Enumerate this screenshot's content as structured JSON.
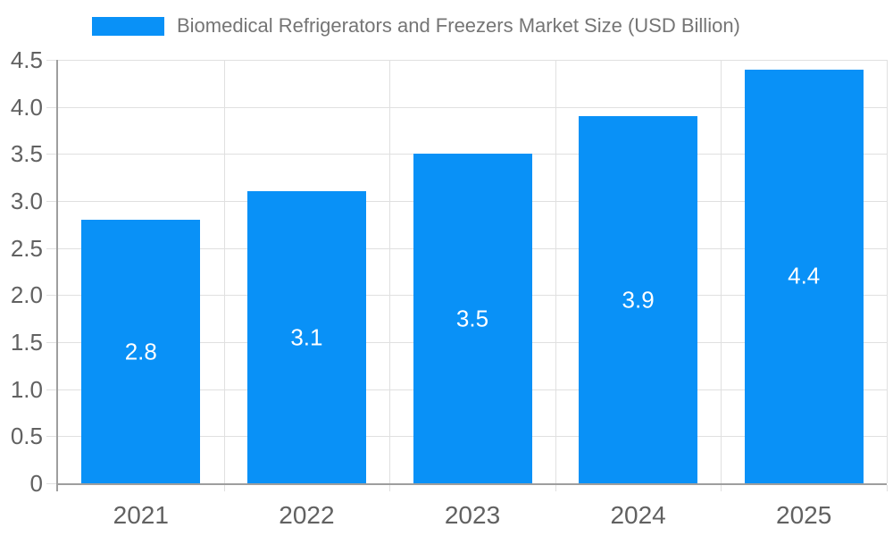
{
  "chart_data": {
    "type": "bar",
    "title": "Biomedical Refrigerators and Freezers Market Size (USD Billion)",
    "categories": [
      "2021",
      "2022",
      "2023",
      "2024",
      "2025"
    ],
    "values": [
      2.8,
      3.1,
      3.5,
      3.9,
      4.4
    ],
    "value_labels": [
      "2.8",
      "3.1",
      "3.5",
      "3.9",
      "4.4"
    ],
    "xlabel": "",
    "ylabel": "",
    "ylim": [
      0,
      4.5
    ],
    "y_tick_labels": [
      "0",
      "0.5",
      "1.0",
      "1.5",
      "2.0",
      "2.5",
      "3.0",
      "3.5",
      "4.0",
      "4.5"
    ],
    "grid": true,
    "legend_position": "top-center",
    "legend_entries": [
      "Biomedical Refrigerators and Freezers Market Size (USD Billion)"
    ]
  },
  "colors": {
    "bar": "#0991F7",
    "bar_label": "#FFFFFF",
    "title_text": "#757575",
    "axis_text": "#616161",
    "gridline": "#E0E0E0",
    "axis_line": "#9E9E9E",
    "background": "#FFFFFF"
  }
}
